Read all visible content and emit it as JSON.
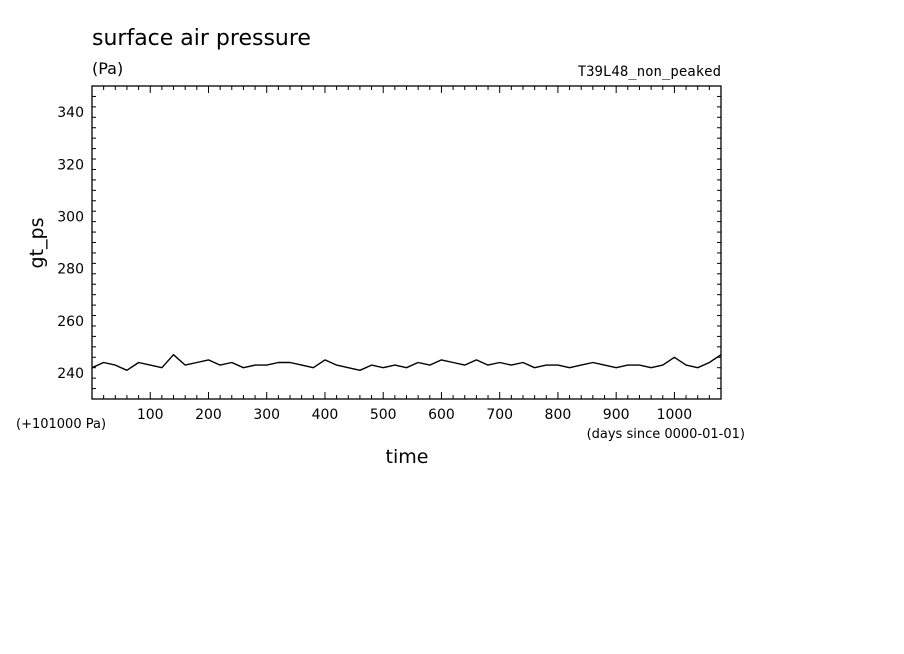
{
  "chart_data": {
    "type": "line",
    "title": "surface air pressure",
    "units": "(Pa)",
    "case_name": "T39L48_non_peaked",
    "xlabel": "time",
    "xlabel_units": "(days since 0000-01-01)",
    "ylabel": "gt_ps",
    "y_offset_note": "(+101000 Pa)",
    "xlim": [
      0,
      1080
    ],
    "ylim": [
      230,
      350
    ],
    "x_ticks": [
      100,
      200,
      300,
      400,
      500,
      600,
      700,
      800,
      900,
      1000
    ],
    "x_tick_labels": [
      "100",
      "200",
      "300",
      "400",
      "500",
      "600",
      "700",
      "800",
      "900",
      "1000"
    ],
    "y_ticks": [
      240,
      260,
      280,
      300,
      320,
      340
    ],
    "y_tick_labels": [
      "240",
      "260",
      "280",
      "300",
      "320",
      "340"
    ],
    "grid": false,
    "series": [
      {
        "x": [
          0,
          20,
          40,
          60,
          80,
          100,
          120,
          140,
          160,
          180,
          200,
          220,
          240,
          260,
          280,
          300,
          320,
          340,
          360,
          380,
          400,
          420,
          440,
          460,
          480,
          500,
          520,
          540,
          560,
          580,
          600,
          620,
          640,
          660,
          680,
          700,
          720,
          740,
          760,
          780,
          800,
          820,
          840,
          860,
          880,
          900,
          920,
          940,
          960,
          980,
          1000,
          1020,
          1040,
          1060,
          1080
        ],
        "values": [
          242,
          244,
          243,
          241,
          244,
          243,
          242,
          247,
          243,
          244,
          245,
          243,
          244,
          242,
          243,
          243,
          244,
          244,
          243,
          242,
          245,
          243,
          242,
          241,
          243,
          242,
          243,
          242,
          244,
          243,
          245,
          244,
          243,
          245,
          243,
          244,
          243,
          244,
          242,
          243,
          243,
          242,
          243,
          244,
          243,
          242,
          243,
          243,
          242,
          243,
          246,
          243,
          242,
          244,
          247
        ]
      }
    ]
  }
}
